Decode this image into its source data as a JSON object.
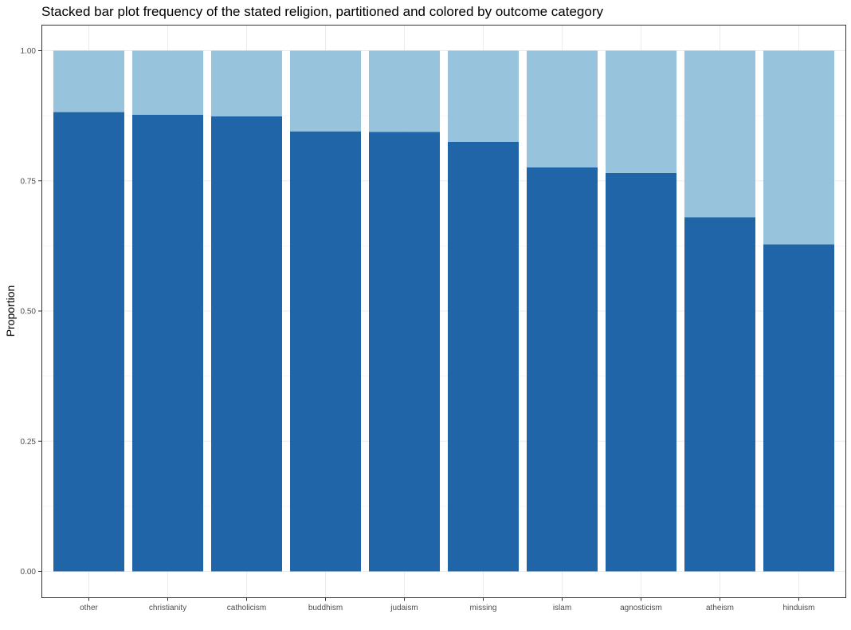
{
  "chart_data": {
    "type": "bar",
    "stacked": true,
    "title": "Stacked bar plot frequency of the stated religion, partitioned and colored by outcome category",
    "xlabel": "",
    "ylabel": "Proportion",
    "ylim": [
      0,
      1
    ],
    "yticks": [
      "0.00",
      "0.25",
      "0.50",
      "0.75",
      "1.00"
    ],
    "grid": true,
    "legend": "none",
    "categories": [
      "other",
      "christianity",
      "catholicism",
      "buddhism",
      "judaism",
      "missing",
      "islam",
      "agnosticism",
      "atheism",
      "hinduism"
    ],
    "series": [
      {
        "color": "#1f65a8",
        "values": [
          0.882,
          0.877,
          0.874,
          0.845,
          0.844,
          0.825,
          0.776,
          0.765,
          0.68,
          0.628
        ]
      },
      {
        "color": "#97c4dc",
        "values": [
          0.118,
          0.123,
          0.126,
          0.155,
          0.156,
          0.175,
          0.224,
          0.235,
          0.32,
          0.372
        ]
      }
    ]
  }
}
